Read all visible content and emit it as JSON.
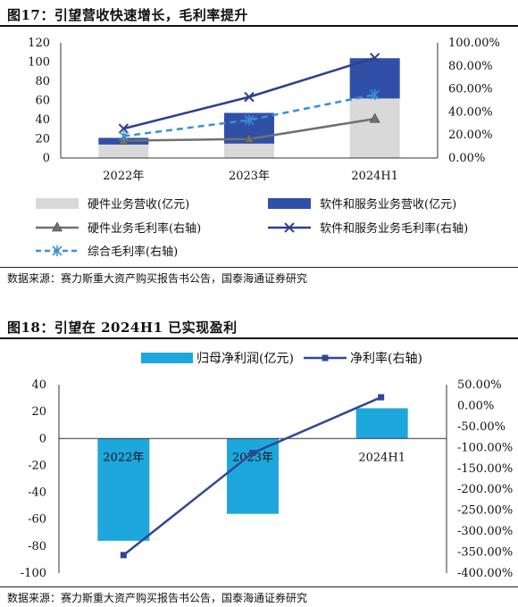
{
  "figure17": {
    "title": "图17：引望营收快速增长，毛利率提升",
    "source": "数据来源：赛力斯重大资产购买报告书公告，国泰海通证券研究"
  },
  "figure18": {
    "title": "图18：引望在 2024H1 已实现盈利",
    "source": "数据来源：赛力斯重大资产购买报告书公告，国泰海通证券研究"
  },
  "colors": {
    "hardware_bar": "#d9d9d9",
    "software_bar": "#3050a8",
    "hardware_margin": "#707070",
    "software_margin": "#2f3f8f",
    "total_margin": "#3b8fd6",
    "net_profit_bar": "#1ea7dd",
    "net_margin": "#2f4797"
  },
  "chart_data": [
    {
      "type": "bar",
      "stacked": true,
      "categories": [
        "2022年",
        "2023年",
        "2024H1"
      ],
      "left_axis": {
        "min": 0,
        "max": 120,
        "ticks": [
          "0",
          "20",
          "40",
          "60",
          "80",
          "100",
          "120"
        ]
      },
      "right_axis": {
        "min": 0,
        "max": 100,
        "ticks": [
          "0.00%",
          "20.00%",
          "40.00%",
          "60.00%",
          "80.00%",
          "100.00%"
        ]
      },
      "series": [
        {
          "name": "硬件业务营收(亿元)",
          "kind": "bar",
          "axis": "left",
          "values": [
            14,
            15,
            62
          ]
        },
        {
          "name": "软件和服务业务营收(亿元)",
          "kind": "bar",
          "axis": "left",
          "values": [
            7,
            32,
            42
          ]
        },
        {
          "name": "硬件业务毛利率(右轴)",
          "kind": "line",
          "marker": "triangle",
          "axis": "right",
          "values": [
            15,
            16.5,
            34
          ]
        },
        {
          "name": "软件和服务业务毛利率(右轴)",
          "kind": "line",
          "marker": "x",
          "axis": "right",
          "values": [
            25.5,
            53,
            87
          ]
        },
        {
          "name": "综合毛利率(右轴)",
          "kind": "line",
          "marker": "asterisk",
          "dashed": true,
          "axis": "right",
          "values": [
            19,
            33,
            55
          ]
        }
      ],
      "grid": false,
      "legend_position": "bottom"
    },
    {
      "type": "bar",
      "categories": [
        "2022年",
        "2023年",
        "2024H1"
      ],
      "left_axis": {
        "min": -100,
        "max": 40,
        "ticks": [
          "-100",
          "-80",
          "-60",
          "-40",
          "-20",
          "0",
          "20",
          "40"
        ]
      },
      "right_axis": {
        "min": -400,
        "max": 50,
        "ticks": [
          "-400.00%",
          "-350.00%",
          "-300.00%",
          "-250.00%",
          "-200.00%",
          "-150.00%",
          "-100.00%",
          "-50.00%",
          "0.00%",
          "50.00%"
        ]
      },
      "series": [
        {
          "name": "归母净利润(亿元)",
          "kind": "bar",
          "axis": "left",
          "values": [
            -76,
            -56,
            22.5
          ]
        },
        {
          "name": "净利率(右轴)",
          "kind": "line",
          "marker": "square",
          "axis": "right",
          "values": [
            -357,
            -113,
            20
          ]
        }
      ],
      "grid": false,
      "legend_position": "top"
    }
  ]
}
